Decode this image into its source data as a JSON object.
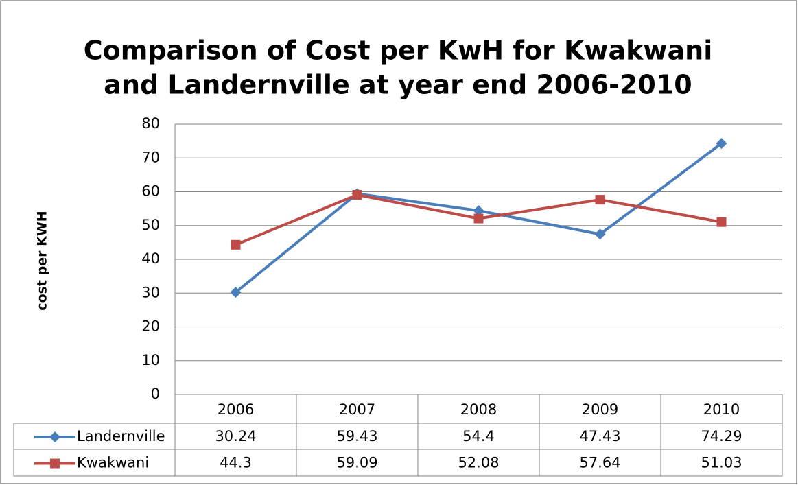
{
  "chart_data": {
    "type": "line",
    "title": [
      "Comparison of Cost per KwH for Kwakwani",
      "and Landernville at year end 2006-2010"
    ],
    "y_label": "cost per KWH",
    "categories": [
      "2006",
      "2007",
      "2008",
      "2009",
      "2010"
    ],
    "series": [
      {
        "name": "Landernville",
        "color": "#4a7ebb",
        "marker": "diamond",
        "values": [
          30.24,
          59.43,
          54.4,
          47.43,
          74.29
        ]
      },
      {
        "name": "Kwakwani",
        "color": "#be4b48",
        "marker": "square",
        "values": [
          44.3,
          59.09,
          52.08,
          57.64,
          51.03
        ]
      }
    ],
    "ylim": [
      0,
      80
    ],
    "yticks": [
      0,
      10,
      20,
      30,
      40,
      50,
      60,
      70,
      80
    ],
    "grid": true,
    "data_table": true
  }
}
